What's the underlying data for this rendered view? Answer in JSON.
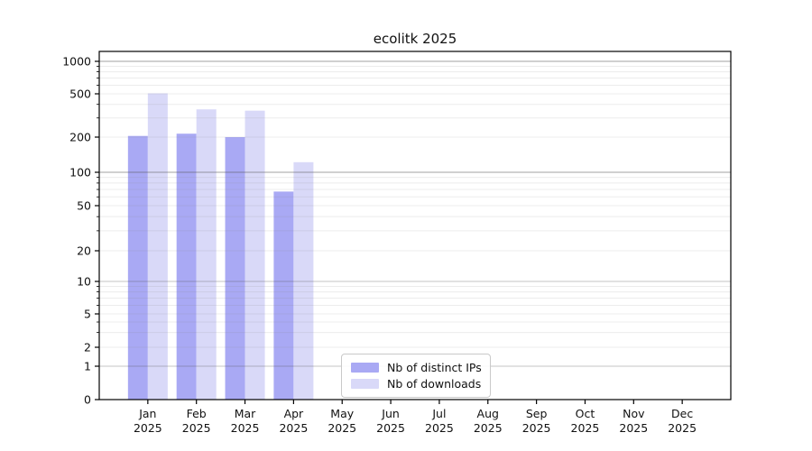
{
  "chart_data": {
    "type": "bar",
    "title": "ecolitk 2025",
    "categories": [
      "Jan",
      "Feb",
      "Mar",
      "Apr",
      "May",
      "Jun",
      "Jul",
      "Aug",
      "Sep",
      "Oct",
      "Nov",
      "Dec"
    ],
    "category_year": "2025",
    "series": [
      {
        "name": "Nb of distinct IPs",
        "color": "#a9a9f4",
        "values": [
          205,
          215,
          200,
          67,
          null,
          null,
          null,
          null,
          null,
          null,
          null,
          null
        ]
      },
      {
        "name": "Nb of downloads",
        "color": "#d9d9f8",
        "values": [
          505,
          360,
          350,
          122,
          null,
          null,
          null,
          null,
          null,
          null,
          null,
          null
        ]
      }
    ],
    "y_ticks": [
      0,
      1,
      2,
      5,
      10,
      20,
      50,
      100,
      200,
      500,
      1000
    ],
    "y_scale": "symlog",
    "ylim": [
      0,
      1000
    ],
    "grid": "on",
    "grid_minor_color": "#ebebeb",
    "grid_major_color": "#b0b0b0",
    "axis_color": "#000000",
    "legend_position": "lower-center-inside"
  }
}
